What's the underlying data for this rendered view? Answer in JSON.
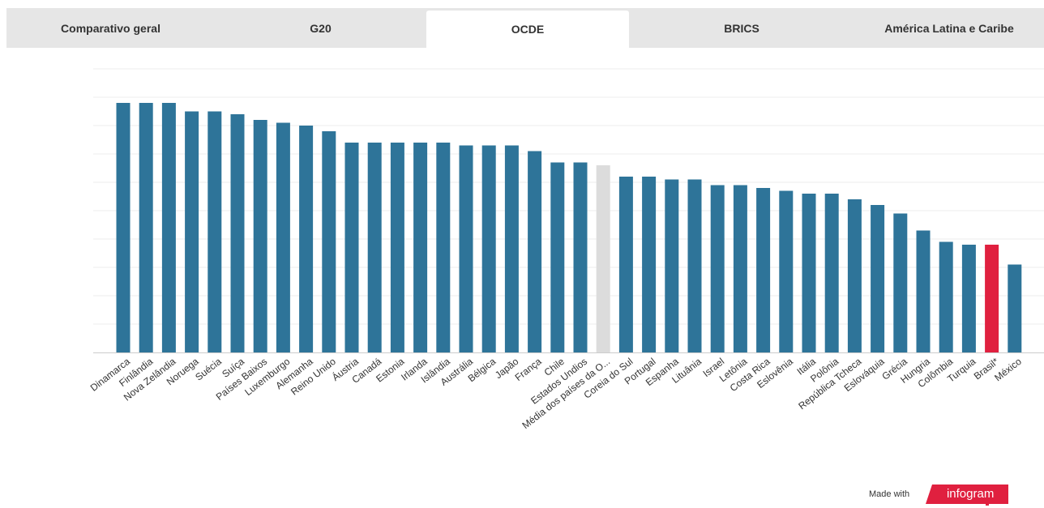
{
  "tabs": [
    {
      "label": "Comparativo geral",
      "active": false
    },
    {
      "label": "G20",
      "active": false
    },
    {
      "label": "OCDE",
      "active": true
    },
    {
      "label": "BRICS",
      "active": false
    },
    {
      "label": "América Latina e Caribe",
      "active": false
    }
  ],
  "colors": {
    "bar": "#2e7499",
    "average": "#dcdcdc",
    "highlight": "#e0203f",
    "grid": "#eeeeee",
    "tab_bar": "#e6e6e6",
    "brand": "#e0203f"
  },
  "chart_data": {
    "type": "bar",
    "title": "",
    "xlabel": "",
    "ylabel": "",
    "ylim": [
      0,
      9
    ],
    "grid": true,
    "legend": "none",
    "y_tick_labels_visible": false,
    "categories": [
      "Dinamarca",
      "Finlândia",
      "Nova Zelândia",
      "Noruega",
      "Suécia",
      "Suíça",
      "Países Baixos",
      "Luxemburgo",
      "Alemanha",
      "Reino Unido",
      "Áustria",
      "Canadá",
      "Estonia",
      "Irlanda",
      "Islândia",
      "Austrália",
      "Bélgica",
      "Japão",
      "França",
      "Chile",
      "Estados Undios",
      "Média dos países da O...",
      "Coreia do Sul",
      "Portugal",
      "Espanha",
      "Lituânia",
      "Israel",
      "Letônia",
      "Costa Rica",
      "Eslovênia",
      "Itália",
      "Polônia",
      "República Tcheca",
      "Eslováquia",
      "Grécia",
      "Hungria",
      "Colômbia",
      "Turquia",
      "Brasil*",
      "México"
    ],
    "values": [
      8.8,
      8.8,
      8.8,
      8.5,
      8.5,
      8.4,
      8.2,
      8.1,
      8.0,
      7.8,
      7.4,
      7.4,
      7.4,
      7.4,
      7.4,
      7.3,
      7.3,
      7.3,
      7.1,
      6.7,
      6.7,
      6.6,
      6.2,
      6.2,
      6.1,
      6.1,
      5.9,
      5.9,
      5.8,
      5.7,
      5.6,
      5.6,
      5.4,
      5.2,
      4.9,
      4.3,
      3.9,
      3.8,
      3.8,
      3.1
    ],
    "average_category": "Média dos países da O...",
    "highlight_category": "Brasil*"
  },
  "credit": {
    "made_with": "Made with",
    "brand": "infogram"
  }
}
